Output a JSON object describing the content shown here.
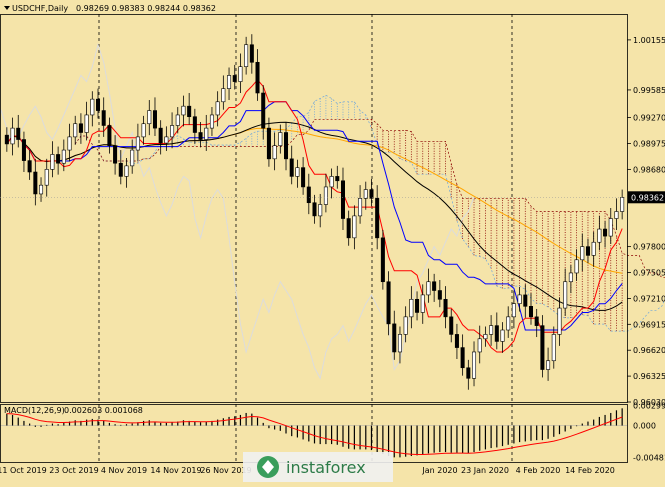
{
  "header": {
    "symbol": "USDCHF,Daily",
    "ohlc": "0.98269 0.98383 0.98244 0.98362"
  },
  "watermark": "instaforex",
  "chart_data": [
    {
      "type": "line",
      "subtype": "candlestick",
      "symbol": "USDCHF",
      "timeframe": "Daily",
      "ylim": [
        0.9603,
        1.0045
      ],
      "y_ticks": [
        "1.00155",
        "0.99585",
        "0.99270",
        "0.98975",
        "0.98680",
        "0.98362",
        "0.97800",
        "0.97505",
        "0.97210",
        "0.96915",
        "0.96620",
        "0.96325",
        "0.96030"
      ],
      "x_ticks": [
        "11 Oct 2019",
        "23 Oct 2019",
        "4 Nov 2019",
        "14 Nov 2019",
        "26 Nov 2019",
        "",
        "",
        "",
        "",
        "Jan 2020",
        "23 Jan 2020",
        "4 Feb 2020",
        "14 Feb 2020"
      ],
      "current_price": "0.98362",
      "colors": {
        "background": "#f5e4a9",
        "bull": "#ffffff",
        "bear": "#000000",
        "ma_fast": "#ff0000",
        "ma_mid": "#0000ff",
        "ma_slow": "#000000",
        "ma_long": "#ffa500",
        "chikou": "#dcdcdc",
        "cloud_a": "#8b0000",
        "cloud_b": "#6ea6dc",
        "price_label_bg": "#000000"
      },
      "closes": [
        0.9897,
        0.9915,
        0.9902,
        0.9878,
        0.9865,
        0.984,
        0.985,
        0.9868,
        0.9885,
        0.9875,
        0.989,
        0.9905,
        0.992,
        0.991,
        0.993,
        0.9948,
        0.9935,
        0.9918,
        0.9895,
        0.9875,
        0.986,
        0.9872,
        0.989,
        0.9905,
        0.992,
        0.9935,
        0.9915,
        0.9898,
        0.9905,
        0.9918,
        0.993,
        0.994,
        0.9928,
        0.991,
        0.9902,
        0.9915,
        0.993,
        0.9945,
        0.996,
        0.9975,
        0.9968,
        0.9985,
        1.001,
        0.999,
        0.9955,
        0.9915,
        0.988,
        0.9895,
        0.991,
        0.988,
        0.986,
        0.987,
        0.9848,
        0.983,
        0.9815,
        0.9828,
        0.9848,
        0.986,
        0.9855,
        0.9812,
        0.979,
        0.9815,
        0.9835,
        0.9845,
        0.9835,
        0.979,
        0.974,
        0.9692,
        0.966,
        0.968,
        0.97,
        0.972,
        0.9705,
        0.9725,
        0.974,
        0.973,
        0.972,
        0.97,
        0.968,
        0.9665,
        0.9642,
        0.963,
        0.966,
        0.9675,
        0.968,
        0.969,
        0.9672,
        0.9685,
        0.97,
        0.9715,
        0.9725,
        0.9712,
        0.97,
        0.969,
        0.964,
        0.965,
        0.968,
        0.971,
        0.974,
        0.975,
        0.9765,
        0.978,
        0.977,
        0.9785,
        0.98,
        0.9792,
        0.9812,
        0.982,
        0.9836
      ]
    },
    {
      "type": "bar",
      "name": "MACD(12,26,9)",
      "values_text": "0.002603 0.001068",
      "ylim": [
        -0.0055,
        0.00325
      ],
      "y_ticks": [
        "0.002998",
        "0.000",
        "-0.004818"
      ],
      "histogram": [
        0.0018,
        0.0016,
        0.0012,
        0.0007,
        0.0003,
        -0.0002,
        -0.0002,
        0.0001,
        0.0003,
        0.0002,
        0.0004,
        0.0006,
        0.0008,
        0.0007,
        0.0009,
        0.001,
        0.0009,
        0.0007,
        0.0004,
        0.0002,
        0.0001,
        0.0002,
        0.0003,
        0.0005,
        0.0007,
        0.0008,
        0.0006,
        0.0004,
        0.0004,
        0.0005,
        0.0006,
        0.0008,
        0.0007,
        0.0006,
        0.0005,
        0.0006,
        0.0007,
        0.0009,
        0.0011,
        0.0013,
        0.0014,
        0.0016,
        0.0019,
        0.0018,
        0.0012,
        0.0004,
        -0.0004,
        -0.0006,
        -0.0008,
        -0.0012,
        -0.0016,
        -0.0018,
        -0.0021,
        -0.0024,
        -0.0027,
        -0.0028,
        -0.0028,
        -0.0028,
        -0.0029,
        -0.0032,
        -0.0035,
        -0.0036,
        -0.0036,
        -0.0036,
        -0.0037,
        -0.004,
        -0.0043,
        -0.0046,
        -0.0048,
        -0.0048,
        -0.0047,
        -0.0046,
        -0.0045,
        -0.0044,
        -0.0042,
        -0.0041,
        -0.004,
        -0.004,
        -0.0041,
        -0.0041,
        -0.0042,
        -0.0042,
        -0.004,
        -0.0038,
        -0.0036,
        -0.0034,
        -0.0033,
        -0.0031,
        -0.0029,
        -0.0027,
        -0.0025,
        -0.0024,
        -0.0023,
        -0.0022,
        -0.0022,
        -0.002,
        -0.0017,
        -0.0013,
        -0.0009,
        -0.0005,
        -0.0001,
        0.0003,
        0.0006,
        0.0009,
        0.0013,
        0.0016,
        0.0019,
        0.0023,
        0.0026
      ]
    }
  ]
}
